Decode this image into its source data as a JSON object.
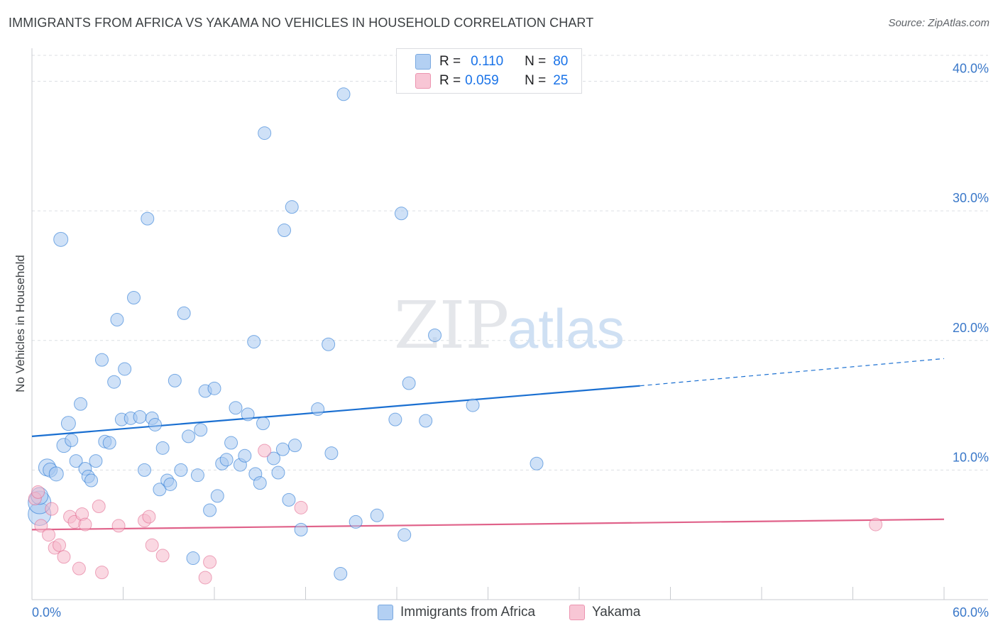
{
  "title": "IMMIGRANTS FROM AFRICA VS YAKAMA NO VEHICLES IN HOUSEHOLD CORRELATION CHART",
  "source": "Source: ZipAtlas.com",
  "watermark": {
    "zip": "ZIP",
    "atlas": "atlas"
  },
  "legend": {
    "rows": [
      {
        "r_label": "R =",
        "r_value": "0.110",
        "n_label": "N =",
        "n_value": "80",
        "color": "#a8c8f0"
      },
      {
        "r_label": "R =",
        "r_value": "0.059",
        "n_label": "N =",
        "n_value": "25",
        "color": "#f5b8cb"
      }
    ]
  },
  "bottom_legend": [
    {
      "label": "Immigrants from Africa",
      "color": "#a8c8f0"
    },
    {
      "label": "Yakama",
      "color": "#f5b8cb"
    }
  ],
  "chart_data": {
    "type": "scatter",
    "title": "IMMIGRANTS FROM AFRICA VS YAKAMA NO VEHICLES IN HOUSEHOLD CORRELATION CHART",
    "xlabel": "",
    "ylabel": "No Vehicles in Household",
    "xlim": [
      0,
      60
    ],
    "ylim": [
      0,
      42
    ],
    "x_tick_labels": [
      "0.0%",
      "60.0%"
    ],
    "y_ticks": [
      10,
      20,
      30,
      40
    ],
    "y_tick_labels": [
      "10.0%",
      "20.0%",
      "30.0%",
      "40.0%"
    ],
    "grid": true,
    "legend_position": "top-center",
    "series": [
      {
        "name": "Immigrants from Africa",
        "color": "#1a6fd1",
        "fill": "#a8c8f0",
        "points": [
          [
            0.5,
            6.6,
            16
          ],
          [
            0.5,
            7.5,
            16
          ],
          [
            0.5,
            8.0,
            12
          ],
          [
            1.0,
            10.2,
            12
          ],
          [
            1.2,
            10.0,
            10
          ],
          [
            1.6,
            9.7,
            10
          ],
          [
            1.9,
            27.8,
            10
          ],
          [
            2.1,
            11.9,
            10
          ],
          [
            2.4,
            13.6,
            10
          ],
          [
            2.6,
            12.3,
            9
          ],
          [
            2.9,
            10.7,
            9
          ],
          [
            3.2,
            15.1,
            9
          ],
          [
            3.5,
            10.1,
            9
          ],
          [
            3.7,
            9.5,
            9
          ],
          [
            3.9,
            9.2,
            9
          ],
          [
            4.2,
            10.7,
            9
          ],
          [
            4.6,
            18.5,
            9
          ],
          [
            4.8,
            12.2,
            9
          ],
          [
            5.1,
            12.1,
            9
          ],
          [
            5.4,
            16.8,
            9
          ],
          [
            5.6,
            21.6,
            9
          ],
          [
            5.9,
            13.9,
            9
          ],
          [
            6.1,
            17.8,
            9
          ],
          [
            6.5,
            14.0,
            9
          ],
          [
            6.7,
            23.3,
            9
          ],
          [
            7.1,
            14.1,
            9
          ],
          [
            7.4,
            10.0,
            9
          ],
          [
            7.6,
            29.4,
            9
          ],
          [
            7.9,
            14.0,
            9
          ],
          [
            8.1,
            13.5,
            9
          ],
          [
            8.4,
            8.5,
            9
          ],
          [
            8.6,
            11.7,
            9
          ],
          [
            8.9,
            9.2,
            9
          ],
          [
            9.1,
            8.9,
            9
          ],
          [
            9.4,
            16.9,
            9
          ],
          [
            9.8,
            10.0,
            9
          ],
          [
            10.0,
            22.1,
            9
          ],
          [
            10.3,
            12.6,
            9
          ],
          [
            10.6,
            3.2,
            9
          ],
          [
            10.9,
            9.6,
            9
          ],
          [
            11.1,
            13.1,
            9
          ],
          [
            11.4,
            16.1,
            9
          ],
          [
            11.7,
            6.9,
            9
          ],
          [
            12.0,
            16.3,
            9
          ],
          [
            12.2,
            8.0,
            9
          ],
          [
            12.5,
            10.5,
            9
          ],
          [
            12.8,
            10.8,
            9
          ],
          [
            13.1,
            12.1,
            9
          ],
          [
            13.4,
            14.8,
            9
          ],
          [
            13.7,
            10.4,
            9
          ],
          [
            14.0,
            11.1,
            9
          ],
          [
            14.2,
            14.3,
            9
          ],
          [
            14.6,
            19.9,
            9
          ],
          [
            14.7,
            9.7,
            9
          ],
          [
            15.0,
            9.0,
            9
          ],
          [
            15.3,
            36.0,
            9
          ],
          [
            15.2,
            13.6,
            9
          ],
          [
            15.9,
            10.9,
            9
          ],
          [
            16.2,
            9.8,
            9
          ],
          [
            16.5,
            11.6,
            9
          ],
          [
            16.6,
            28.5,
            9
          ],
          [
            16.9,
            7.7,
            9
          ],
          [
            17.1,
            30.3,
            9
          ],
          [
            17.3,
            11.9,
            9
          ],
          [
            17.7,
            5.4,
            9
          ],
          [
            18.8,
            14.7,
            9
          ],
          [
            19.5,
            19.7,
            9
          ],
          [
            19.7,
            11.3,
            9
          ],
          [
            20.3,
            2.0,
            9
          ],
          [
            20.5,
            39.0,
            9
          ],
          [
            21.3,
            6.0,
            9
          ],
          [
            22.7,
            6.5,
            9
          ],
          [
            23.9,
            13.9,
            9
          ],
          [
            24.3,
            29.8,
            9
          ],
          [
            24.5,
            5.0,
            9
          ],
          [
            24.8,
            16.7,
            9
          ],
          [
            25.9,
            13.8,
            9
          ],
          [
            26.5,
            20.4,
            9
          ],
          [
            29.0,
            15.0,
            9
          ],
          [
            33.2,
            10.5,
            9
          ]
        ],
        "trendline": {
          "x": [
            0,
            40
          ],
          "y": [
            12.6,
            16.5
          ],
          "dashed_extension": {
            "x": [
              40,
              60
            ],
            "y": [
              16.5,
              18.6
            ]
          }
        }
      },
      {
        "name": "Yakama",
        "color": "#e0628a",
        "fill": "#f5b8cb",
        "points": [
          [
            0.2,
            7.8,
            9
          ],
          [
            0.4,
            8.3,
            9
          ],
          [
            0.6,
            5.7,
            9
          ],
          [
            1.1,
            5.0,
            9
          ],
          [
            1.3,
            7.0,
            9
          ],
          [
            1.5,
            4.0,
            9
          ],
          [
            1.8,
            4.2,
            9
          ],
          [
            2.1,
            3.3,
            9
          ],
          [
            2.5,
            6.4,
            9
          ],
          [
            2.8,
            6.0,
            9
          ],
          [
            3.1,
            2.4,
            9
          ],
          [
            3.3,
            6.6,
            9
          ],
          [
            3.5,
            5.8,
            9
          ],
          [
            4.4,
            7.2,
            9
          ],
          [
            4.6,
            2.1,
            9
          ],
          [
            5.7,
            5.7,
            9
          ],
          [
            7.4,
            6.1,
            9
          ],
          [
            7.7,
            6.4,
            9
          ],
          [
            7.9,
            4.2,
            9
          ],
          [
            8.6,
            3.4,
            9
          ],
          [
            11.4,
            1.7,
            9
          ],
          [
            11.7,
            2.9,
            9
          ],
          [
            15.3,
            11.5,
            9
          ],
          [
            17.7,
            7.1,
            9
          ],
          [
            55.5,
            5.8,
            9
          ]
        ],
        "trendline": {
          "x": [
            0,
            60
          ],
          "y": [
            5.4,
            6.2
          ]
        }
      }
    ]
  }
}
